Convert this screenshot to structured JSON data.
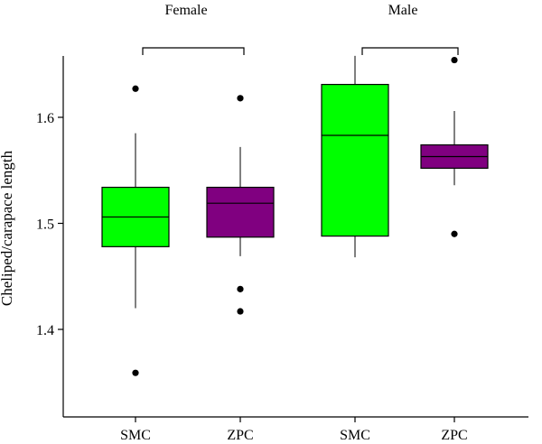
{
  "chart_data": {
    "type": "boxplot",
    "ylabel": "Cheliped/carapace length",
    "ylim": [
      1.33,
      1.665
    ],
    "yticks": [
      1.4,
      1.5,
      1.6
    ],
    "ytick_labels": [
      "1.4",
      "1.5",
      "1.6"
    ],
    "groups": [
      {
        "label": "Female",
        "boxes": [
          {
            "category": "SMC",
            "color": "#00ff00",
            "whisker_low": 1.42,
            "q1": 1.478,
            "median": 1.506,
            "q3": 1.534,
            "whisker_high": 1.585,
            "outliers": [
              1.627,
              1.359
            ]
          },
          {
            "category": "ZPC",
            "color": "#800080",
            "whisker_low": 1.469,
            "q1": 1.487,
            "median": 1.519,
            "q3": 1.534,
            "whisker_high": 1.572,
            "outliers": [
              1.618,
              1.438,
              1.417
            ]
          }
        ]
      },
      {
        "label": "Male",
        "boxes": [
          {
            "category": "SMC",
            "color": "#00ff00",
            "whisker_low": 1.468,
            "q1": 1.488,
            "median": 1.583,
            "q3": 1.631,
            "whisker_high": 1.658,
            "outliers": []
          },
          {
            "category": "ZPC",
            "color": "#800080",
            "whisker_low": 1.536,
            "q1": 1.552,
            "median": 1.563,
            "q3": 1.574,
            "whisker_high": 1.606,
            "outliers": [
              1.654,
              1.49
            ]
          }
        ]
      }
    ],
    "grid": false,
    "legend": "none"
  }
}
